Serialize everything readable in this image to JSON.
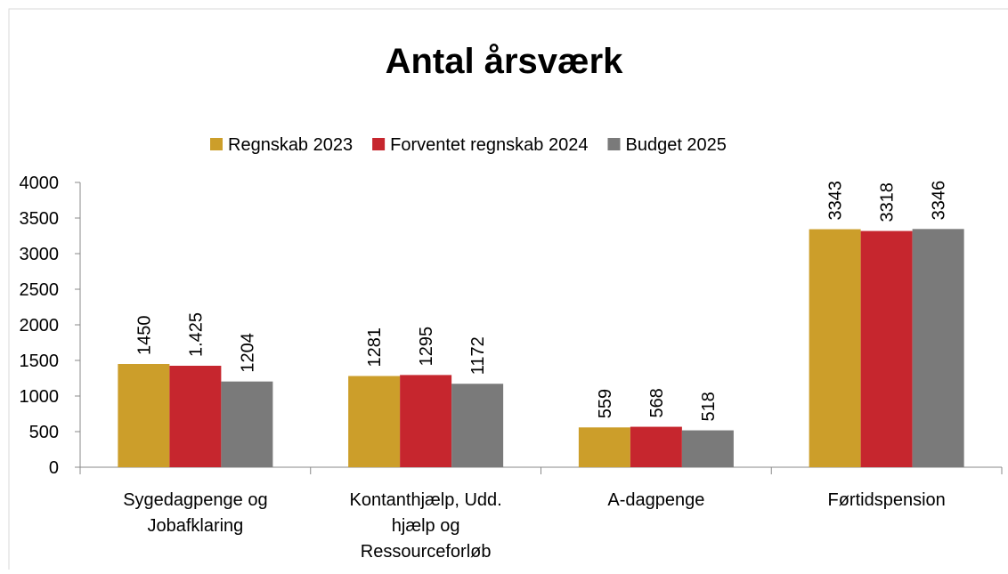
{
  "chart_data": {
    "type": "bar",
    "title": "Antal årsværk",
    "categories": [
      [
        "Sygedagpenge og",
        "Jobafklaring"
      ],
      [
        "Kontanthjælp, Udd.",
        "hjælp og",
        "Ressourceforløb"
      ],
      [
        "A-dagpenge"
      ],
      [
        "Førtidspension"
      ]
    ],
    "series": [
      {
        "name": "Regnskab 2023",
        "color": "#cc9e2a",
        "values": [
          1450,
          1281,
          559,
          3343
        ]
      },
      {
        "name": "Forventet regnskab 2024",
        "color": "#c6262e",
        "values": [
          1425,
          1295,
          568,
          3318
        ],
        "value_labels": [
          "1.425",
          "1295",
          "568",
          "3318"
        ]
      },
      {
        "name": "Budget 2025",
        "color": "#7a7a7a",
        "values": [
          1204,
          1172,
          518,
          3346
        ]
      }
    ],
    "ylim": [
      0,
      4000
    ],
    "yticks": [
      0,
      500,
      1000,
      1500,
      2000,
      2500,
      3000,
      3500,
      4000
    ],
    "grid": false,
    "legend": "top"
  }
}
